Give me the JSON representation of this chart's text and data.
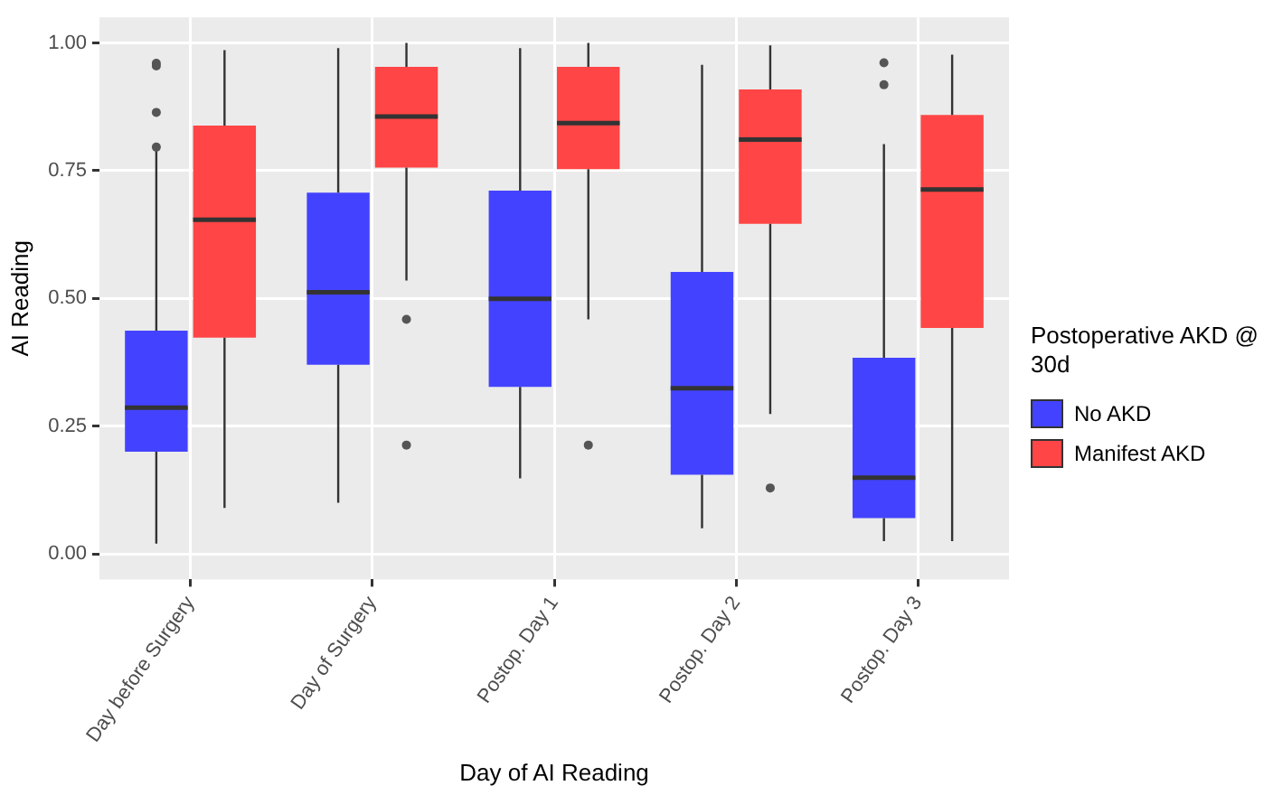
{
  "chart_data": {
    "type": "box",
    "xlabel": "Day of AI Reading",
    "ylabel": "AI Reading",
    "legend_title": "Postoperative AKD @ 30d",
    "legend": "right",
    "grid": true,
    "categories": [
      "Day before Surgery",
      "Day of Surgery",
      "Postop. Day 1",
      "Postop. Day 2",
      "Postop. Day 3"
    ],
    "ylim": [
      -0.05,
      1.05
    ],
    "yticks": [
      {
        "value": 0,
        "label": "0.00"
      },
      {
        "value": 0.25,
        "label": "0.25"
      },
      {
        "value": 0.5,
        "label": "0.50"
      },
      {
        "value": 0.75,
        "label": "0.75"
      },
      {
        "value": 1,
        "label": "1.00"
      }
    ],
    "series": [
      {
        "name": "No AKD",
        "color": "#4343ff",
        "boxes": [
          {
            "low": 0.02,
            "q1": 0.2,
            "median": 0.286,
            "q3": 0.437,
            "high": 0.79,
            "outliers": [
              0.96,
              0.955,
              0.864,
              0.796
            ]
          },
          {
            "low": 0.1,
            "q1": 0.37,
            "median": 0.512,
            "q3": 0.707,
            "high": 0.99
          },
          {
            "low": 0.148,
            "q1": 0.327,
            "median": 0.499,
            "q3": 0.711,
            "high": 0.99
          },
          {
            "low": 0.05,
            "q1": 0.155,
            "median": 0.324,
            "q3": 0.552,
            "high": 0.957
          },
          {
            "low": 0.025,
            "q1": 0.07,
            "median": 0.149,
            "q3": 0.384,
            "high": 0.802,
            "outliers": [
              0.961,
              0.918
            ]
          }
        ]
      },
      {
        "name": "Manifest AKD",
        "color": "#ff4545",
        "boxes": [
          {
            "low": 0.09,
            "q1": 0.423,
            "median": 0.654,
            "q3": 0.838,
            "high": 0.986
          },
          {
            "low": 0.535,
            "q1": 0.756,
            "median": 0.856,
            "q3": 0.953,
            "high": 1.0,
            "outliers": [
              0.459,
              0.213
            ]
          },
          {
            "low": 0.459,
            "q1": 0.753,
            "median": 0.843,
            "q3": 0.953,
            "high": 1.0,
            "outliers": [
              0.213
            ]
          },
          {
            "low": 0.274,
            "q1": 0.646,
            "median": 0.811,
            "q3": 0.909,
            "high": 0.995,
            "outliers": [
              0.129
            ]
          },
          {
            "low": 0.025,
            "q1": 0.442,
            "median": 0.713,
            "q3": 0.859,
            "high": 0.977
          }
        ]
      }
    ]
  }
}
